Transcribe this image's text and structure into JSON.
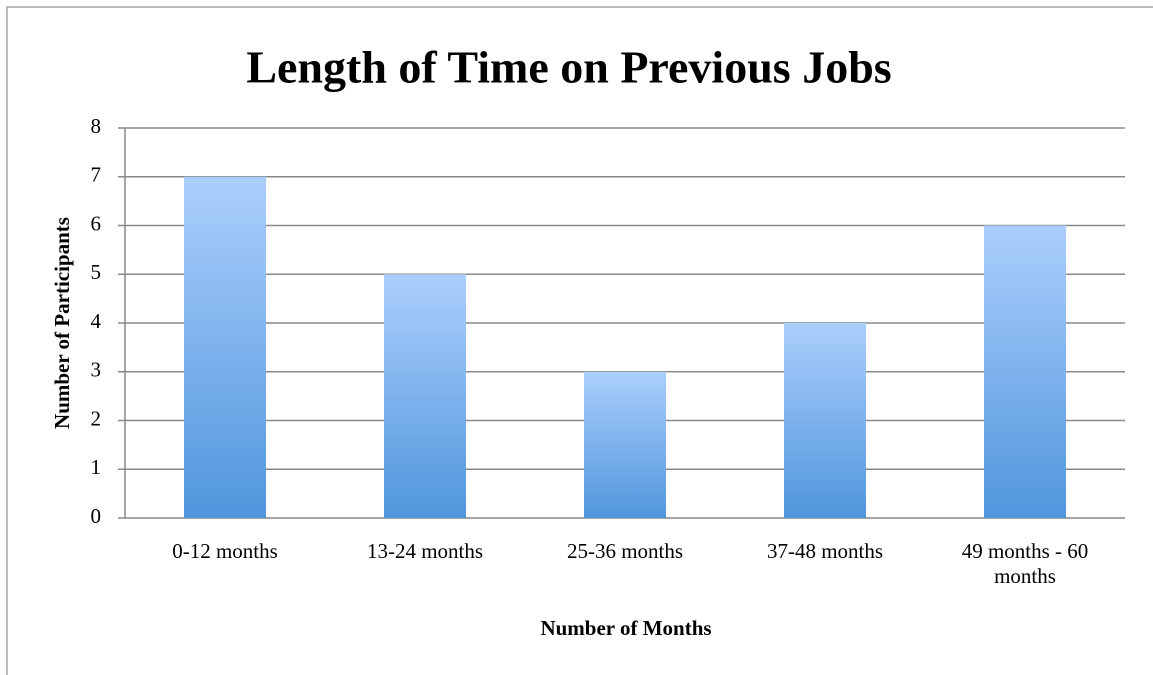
{
  "chart_data": {
    "type": "bar",
    "title": "Length of Time on Previous Jobs",
    "x_label": "Number of Months",
    "y_label": "Number of Participants",
    "categories": [
      "0-12 months",
      "13-24 months",
      "25-36 months",
      "37-48 months",
      "49 months - 60 months"
    ],
    "values": [
      7,
      5,
      3,
      4,
      6
    ],
    "color": "#5096dc",
    "ylim": [
      0,
      8
    ],
    "yticks": [
      0,
      1,
      2,
      3,
      4,
      5,
      6,
      7,
      8
    ],
    "grid": true
  }
}
